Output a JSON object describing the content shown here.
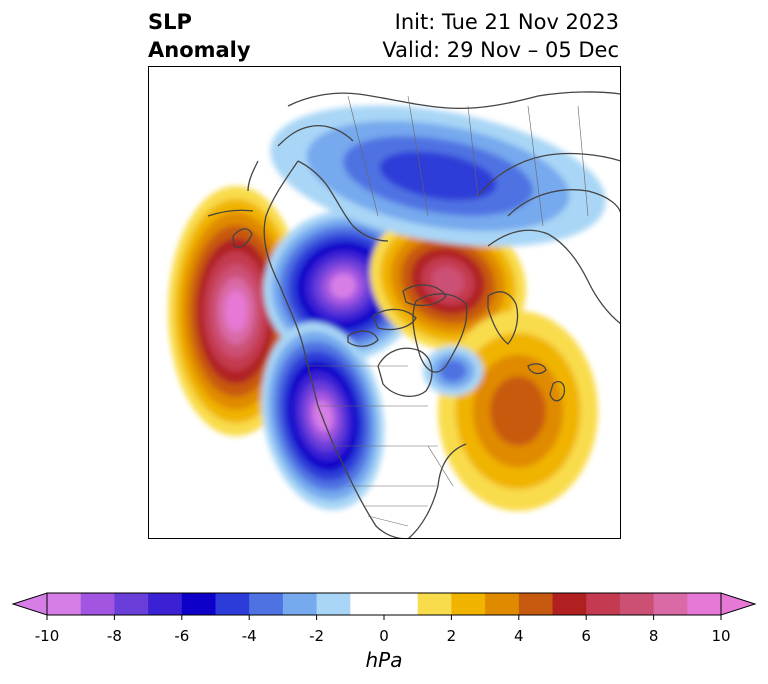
{
  "title": {
    "left_line1": "SLP",
    "left_line2": "Anomaly",
    "right_line1": "Init: Tue 21 Nov 2023",
    "right_line2": "Valid: 29 Nov – 05 Dec"
  },
  "colorbar": {
    "unit_label": "hPa",
    "ticks": [
      "-10",
      "-8",
      "-6",
      "-4",
      "-2",
      "0",
      "2",
      "4",
      "6",
      "8",
      "10"
    ],
    "colors": [
      "#d77ee6",
      "#a155e0",
      "#6a3ed9",
      "#3a22d4",
      "#0e00c9",
      "#2d3cd8",
      "#4f72e2",
      "#76a9ee",
      "#a9d6f6",
      "#ffffff",
      "#ffffff",
      "#f9dc4b",
      "#f0b400",
      "#e08a00",
      "#c85a10",
      "#b02020",
      "#c43a50",
      "#cc4f74",
      "#d96aa6",
      "#e779d6"
    ],
    "extend_low_color": "#d77ee6",
    "extend_high_color": "#e779d6"
  },
  "map": {
    "projection": "north polar stereographic",
    "features": [
      {
        "name": "north-pacific-positive-anomaly",
        "sign": "positive",
        "peak_hpa": 10
      },
      {
        "name": "arctic-negative-anomaly",
        "sign": "negative",
        "peak_hpa": -10
      },
      {
        "name": "western-north-america-negative-anomaly",
        "sign": "negative",
        "peak_hpa": -9
      },
      {
        "name": "siberia-positive-anomaly",
        "sign": "positive",
        "peak_hpa": 7
      },
      {
        "name": "north-atlantic-positive-anomaly",
        "sign": "positive",
        "peak_hpa": 4
      },
      {
        "name": "eurasia-negative-anomaly",
        "sign": "negative",
        "peak_hpa": -4
      },
      {
        "name": "greenland-negative-anomaly",
        "sign": "negative",
        "peak_hpa": -3
      }
    ]
  }
}
